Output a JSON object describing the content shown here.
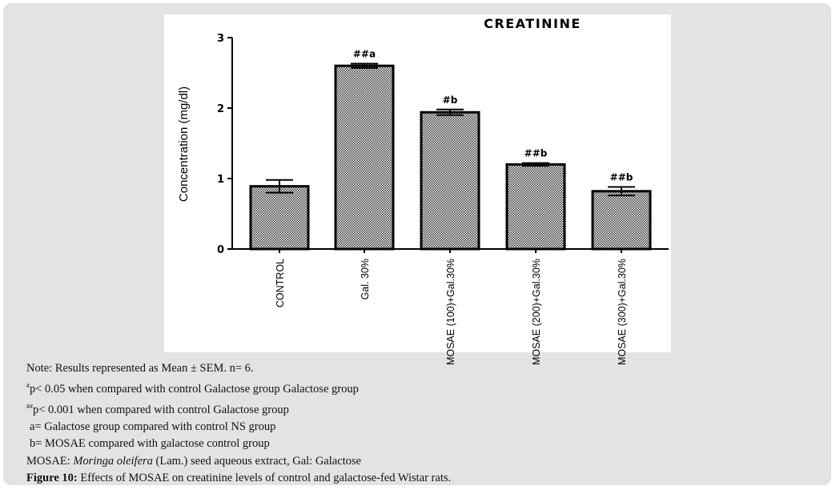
{
  "chart_data": {
    "type": "bar",
    "title": "CREATININE",
    "ylabel": "Concentration (mg/dl)",
    "xlabel": "",
    "ylim": [
      0,
      3
    ],
    "yticks": [
      "0",
      "1",
      "2",
      "3"
    ],
    "categories": [
      "CONTROL",
      "Gal. 30%",
      "MOSAE (100)+Gal.30%",
      "MOSAE (200)+Gal.30%",
      "MOSAE (300)+Gal.30%"
    ],
    "values": [
      0.89,
      2.6,
      1.94,
      1.2,
      0.82
    ],
    "errors": [
      0.09,
      0.03,
      0.04,
      0.02,
      0.06
    ],
    "annotations": [
      "",
      "##a",
      "#b",
      "##b",
      "##b"
    ],
    "fill": "checkered pattern",
    "grid": false
  },
  "notes": {
    "line1": "Note: Results represented as Mean ± SEM. n= 6.",
    "line2_sup": "#",
    "line2": "p< 0.05 when compared with control Galactose group Galactose group",
    "line3_sup": "##",
    "line3": "p< 0.001 when compared with control Galactose group",
    "line4": "a= Galactose group compared with control NS group",
    "line5": "b= MOSAE compared with galactose control group",
    "line6_a": "MOSAE: ",
    "line6_i": "Moringa oleifera",
    "line6_b": " (Lam.) seed aqueous extract, Gal: Galactose",
    "caption_label": "Figure 10:",
    "caption": " Effects of MOSAE on creatinine levels of control and galactose-fed Wistar rats."
  }
}
